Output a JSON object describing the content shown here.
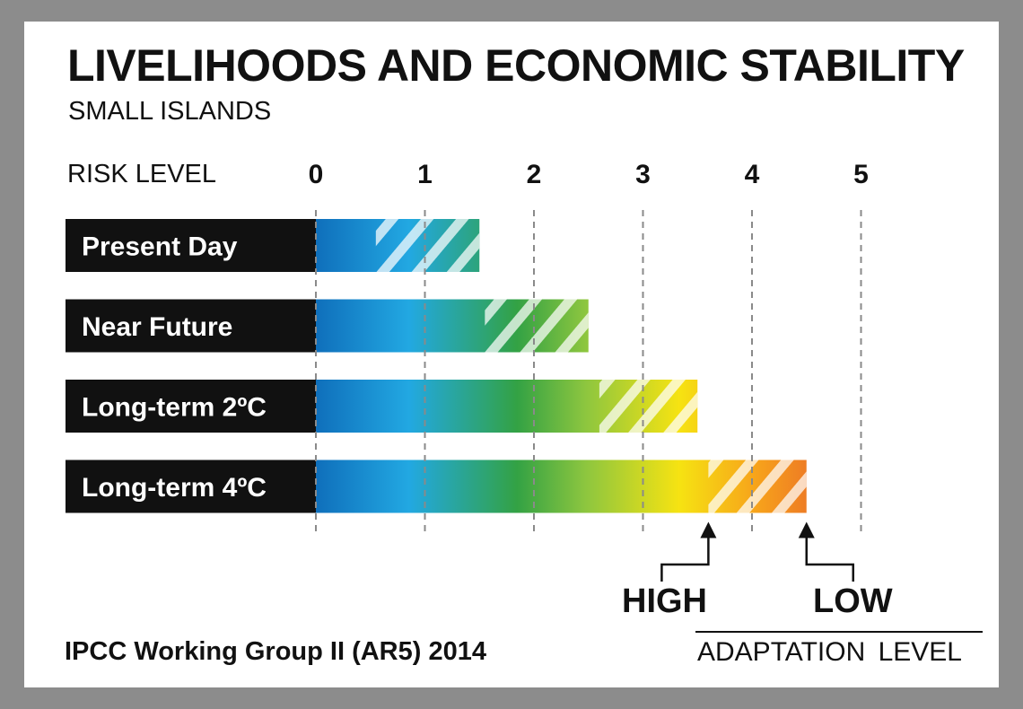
{
  "title": "LIVELIHOODS AND ECONOMIC STABILITY",
  "subtitle": "SMALL ISLANDS",
  "source": "IPCC Working Group II (AR5) 2014",
  "chart_data": {
    "type": "bar",
    "orientation": "horizontal",
    "axis_title": "RISK LEVEL",
    "xlim": [
      0,
      5
    ],
    "ticks": [
      0,
      1,
      2,
      3,
      4,
      5
    ],
    "grid": true,
    "gradient_colors": [
      "#0f6fbb",
      "#22a8e2",
      "#33a244",
      "#8dc63f",
      "#f6e312",
      "#f7a21b",
      "#ee7d24"
    ],
    "categories": [
      "Present Day",
      "Near Future",
      "Long-term 2ºC",
      "Long-term 4ºC"
    ],
    "series": [
      {
        "name": "HIGH",
        "values": [
          0.55,
          1.55,
          2.6,
          3.6
        ]
      },
      {
        "name": "LOW",
        "values": [
          1.5,
          2.5,
          3.5,
          4.5
        ]
      }
    ],
    "adaptation": {
      "label": "ADAPTATION  LEVEL",
      "high_label": "HIGH",
      "low_label": "LOW"
    }
  }
}
